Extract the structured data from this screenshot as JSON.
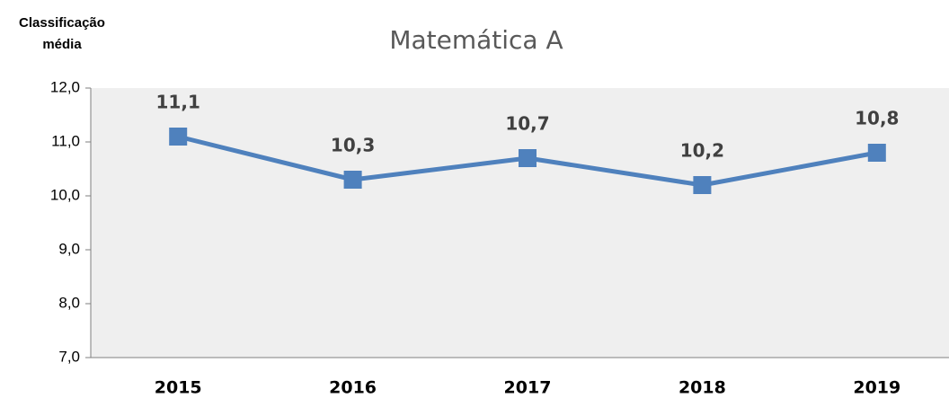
{
  "chart_data": {
    "type": "line",
    "title": "Matemática A",
    "y_label": "Classificação média",
    "categories": [
      "2015",
      "2016",
      "2017",
      "2018",
      "2019"
    ],
    "values": [
      11.1,
      10.3,
      10.7,
      10.2,
      10.8
    ],
    "value_labels": [
      "11,1",
      "10,3",
      "10,7",
      "10,2",
      "10,8"
    ],
    "color": "#4f81bd",
    "ylim": [
      7,
      12
    ],
    "yticks": [
      {
        "value": 7,
        "label": "7,0"
      },
      {
        "value": 8,
        "label": "8,0"
      },
      {
        "value": 9,
        "label": "9,0"
      },
      {
        "value": 10,
        "label": "10,0"
      },
      {
        "value": 11,
        "label": "11,0"
      },
      {
        "value": 12,
        "label": "12,0"
      }
    ],
    "grid": false
  }
}
